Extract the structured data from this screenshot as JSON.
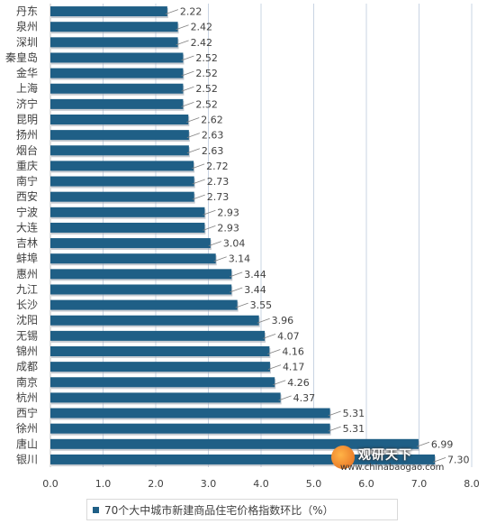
{
  "chart_data": {
    "type": "bar",
    "orientation": "horizontal",
    "categories": [
      "丹东",
      "泉州",
      "深圳",
      "秦皇岛",
      "金华",
      "上海",
      "济宁",
      "昆明",
      "扬州",
      "烟台",
      "重庆",
      "南宁",
      "西安",
      "宁波",
      "大连",
      "吉林",
      "蚌埠",
      "惠州",
      "九江",
      "长沙",
      "沈阳",
      "无锡",
      "锦州",
      "成都",
      "南京",
      "杭州",
      "西宁",
      "徐州",
      "唐山",
      "银川"
    ],
    "values": [
      2.22,
      2.42,
      2.42,
      2.52,
      2.52,
      2.52,
      2.52,
      2.62,
      2.63,
      2.63,
      2.72,
      2.73,
      2.73,
      2.93,
      2.93,
      3.04,
      3.14,
      3.44,
      3.44,
      3.55,
      3.96,
      4.07,
      4.16,
      4.17,
      4.26,
      4.37,
      5.31,
      5.31,
      6.99,
      7.3
    ],
    "value_labels": [
      "2.22",
      "2.42",
      "2.42",
      "2.52",
      "2.52",
      "2.52",
      "2.52",
      "2.62",
      "2.63",
      "2.63",
      "2.72",
      "2.73",
      "2.73",
      "2.93",
      "2.93",
      "3.04",
      "3.14",
      "3.44",
      "3.44",
      "3.55",
      "3.96",
      "4.07",
      "4.16",
      "4.17",
      "4.26",
      "4.37",
      "5.31",
      "5.31",
      "6.99",
      "7.30"
    ],
    "xlim": [
      0,
      8
    ],
    "xticks": [
      "0.0",
      "1.0",
      "2.0",
      "3.0",
      "4.0",
      "5.0",
      "6.0",
      "7.0",
      "8.0"
    ],
    "grid": true,
    "legend_position": "bottom",
    "series": [
      {
        "name": "70个大中城市新建商品住宅价格指数环比（%）"
      }
    ],
    "colors": {
      "bar": "#1f5f86",
      "grid": "#c9d4e3",
      "text": "#404040"
    }
  },
  "watermark": {
    "title": "观研天下",
    "url": "www.chinabaogao.com"
  }
}
